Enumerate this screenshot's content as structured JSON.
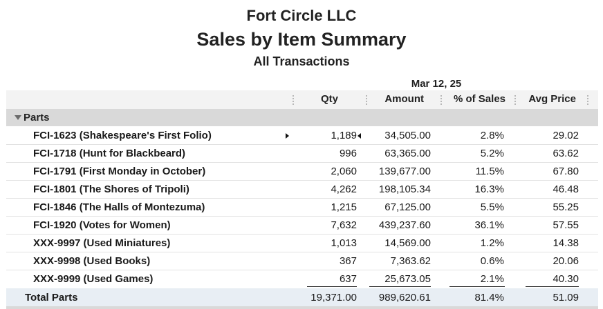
{
  "report": {
    "company": "Fort Circle LLC",
    "title": "Sales by Item Summary",
    "subtitle": "All Transactions",
    "period": "Mar 12, 25"
  },
  "columns": {
    "qty": "Qty",
    "amount": "Amount",
    "pct": "% of Sales",
    "avg": "Avg Price"
  },
  "section": {
    "label": "Parts"
  },
  "rows": [
    {
      "name": "FCI-1623 (Shakespeare's First Folio)",
      "qty": "1,189",
      "amount": "34,505.00",
      "pct": "2.8%",
      "avg": "29.02"
    },
    {
      "name": "FCI-1718 (Hunt for Blackbeard)",
      "qty": "996",
      "amount": "63,365.00",
      "pct": "5.2%",
      "avg": "63.62"
    },
    {
      "name": "FCI-1791 (First Monday in October)",
      "qty": "2,060",
      "amount": "139,677.00",
      "pct": "11.5%",
      "avg": "67.80"
    },
    {
      "name": "FCI-1801 (The Shores of Tripoli)",
      "qty": "4,262",
      "amount": "198,105.34",
      "pct": "16.3%",
      "avg": "46.48"
    },
    {
      "name": "FCI-1846 (The Halls of Montezuma)",
      "qty": "1,215",
      "amount": "67,125.00",
      "pct": "5.5%",
      "avg": "55.25"
    },
    {
      "name": "FCI-1920 (Votes for Women)",
      "qty": "7,632",
      "amount": "439,237.60",
      "pct": "36.1%",
      "avg": "57.55"
    },
    {
      "name": "XXX-9997 (Used Miniatures)",
      "qty": "1,013",
      "amount": "14,569.00",
      "pct": "1.2%",
      "avg": "14.38"
    },
    {
      "name": "XXX-9998 (Used Books)",
      "qty": "367",
      "amount": "7,363.62",
      "pct": "0.6%",
      "avg": "20.06"
    },
    {
      "name": "XXX-9999 (Used Games)",
      "qty": "637",
      "amount": "25,673.05",
      "pct": "2.1%",
      "avg": "40.30"
    }
  ],
  "total": {
    "name": "Total Parts",
    "qty": "19,371.00",
    "amount": "989,620.61",
    "pct": "81.4%",
    "avg": "51.09"
  }
}
